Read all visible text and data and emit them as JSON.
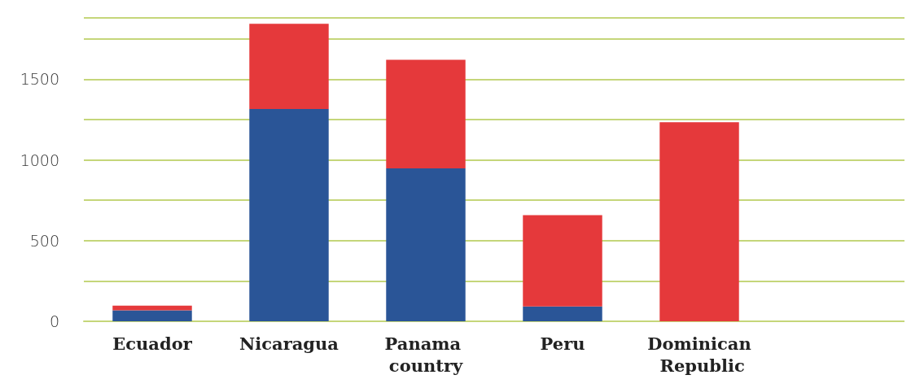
{
  "chart_data": {
    "type": "bar",
    "stacked": true,
    "categories": [
      "Ecuador",
      "Nicaragua",
      "Panama country",
      "Peru",
      "Dominican Republic",
      null
    ],
    "series": [
      {
        "color": "#2a5597",
        "values": [
          68,
          1316,
          948,
          92,
          0,
          null
        ]
      },
      {
        "color": "#e5393b",
        "values": [
          29,
          527,
          673,
          566,
          1234,
          null
        ]
      }
    ],
    "ylim": [
      0,
      1880
    ],
    "yticks": [
      0,
      {
        "value": 250,
        "label": null
      },
      500,
      {
        "value": 750,
        "label": null
      },
      1000,
      {
        "value": 1250,
        "label": null
      },
      1500,
      {
        "value": 1750,
        "label": null
      },
      {
        "value": 1880,
        "label": null
      }
    ],
    "grid": "y"
  }
}
